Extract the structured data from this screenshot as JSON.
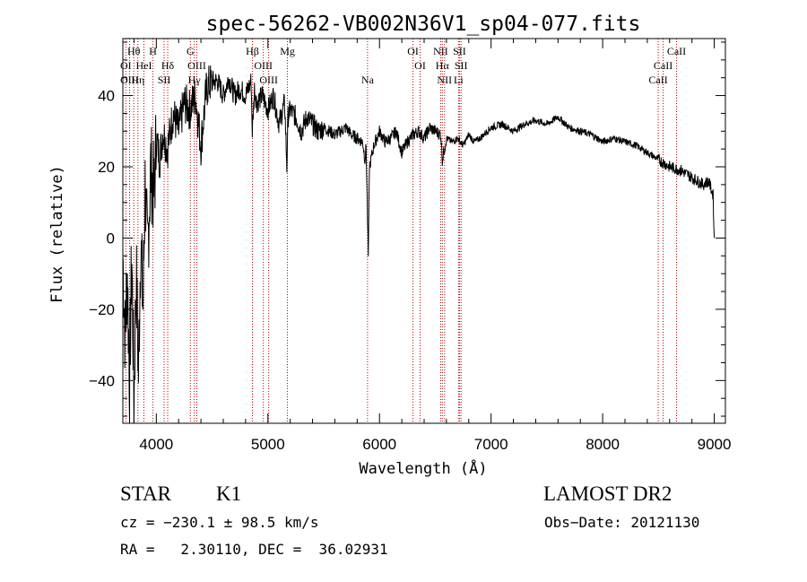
{
  "chart_data": {
    "type": "line",
    "title": "spec-56262-VB002N36V1_sp04-077.fits",
    "xlabel": "Wavelength (Å)",
    "ylabel": "Flux (relative)",
    "xlim": [
      3700,
      9100
    ],
    "ylim": [
      -52,
      56
    ],
    "xticks": [
      4000,
      5000,
      6000,
      7000,
      8000,
      9000
    ],
    "yticks": [
      -40,
      -20,
      0,
      20,
      40
    ],
    "x_minor_step": 200,
    "y_minor_step": 5,
    "grid": false,
    "series": [
      {
        "name": "flux",
        "x": [
          3700,
          3720,
          3740,
          3760,
          3780,
          3800,
          3820,
          3840,
          3860,
          3880,
          3900,
          3920,
          3950,
          3980,
          4000,
          4030,
          4060,
          4100,
          4150,
          4200,
          4250,
          4300,
          4350,
          4400,
          4450,
          4500,
          4550,
          4600,
          4650,
          4700,
          4750,
          4800,
          4850,
          4860,
          4880,
          4900,
          4950,
          5000,
          5050,
          5100,
          5150,
          5170,
          5180,
          5200,
          5250,
          5300,
          5350,
          5400,
          5450,
          5500,
          5550,
          5600,
          5650,
          5700,
          5750,
          5800,
          5850,
          5870,
          5880,
          5893,
          5900,
          5910,
          5950,
          6000,
          6050,
          6100,
          6150,
          6200,
          6250,
          6300,
          6350,
          6400,
          6450,
          6500,
          6550,
          6563,
          6600,
          6650,
          6700,
          6750,
          6800,
          6850,
          6900,
          7000,
          7100,
          7200,
          7300,
          7400,
          7500,
          7600,
          7700,
          7800,
          7900,
          8000,
          8100,
          8200,
          8300,
          8400,
          8500,
          8600,
          8700,
          8800,
          8900,
          8950,
          8990,
          9000
        ],
        "y": [
          -5,
          -28,
          -10,
          -40,
          -5,
          -45,
          -10,
          -38,
          0,
          -20,
          15,
          -5,
          20,
          12,
          28,
          22,
          30,
          25,
          35,
          30,
          38,
          36,
          40,
          26,
          42,
          44,
          44,
          40,
          45,
          40,
          42,
          40,
          44,
          30,
          42,
          38,
          40,
          36,
          40,
          32,
          38,
          20,
          34,
          36,
          34,
          30,
          34,
          32,
          30,
          31,
          30,
          29,
          30,
          31,
          29,
          28,
          27,
          22,
          26,
          5,
          -5,
          20,
          26,
          30,
          27,
          28,
          30,
          24,
          27,
          29,
          30,
          28,
          31,
          30,
          29,
          22,
          28,
          27,
          28,
          26,
          29,
          27,
          28,
          31,
          32,
          30,
          32,
          33,
          32,
          34,
          31,
          30,
          29,
          27,
          28,
          27,
          26,
          24,
          22,
          20,
          19,
          17,
          15,
          16,
          12,
          0
        ]
      }
    ],
    "lines": [
      {
        "label": "Hθ",
        "x": 3798,
        "row": 0
      },
      {
        "label": "H",
        "x": 3970,
        "row": 0
      },
      {
        "label": "G",
        "x": 4305,
        "row": 0
      },
      {
        "label": "Hβ",
        "x": 4861,
        "row": 0
      },
      {
        "label": "Mg",
        "x": 5175,
        "row": 0
      },
      {
        "label": "OI",
        "x": 6300,
        "row": 0
      },
      {
        "label": "NII",
        "x": 6548,
        "row": 0
      },
      {
        "label": "SII",
        "x": 6717,
        "row": 0
      },
      {
        "label": "CaII",
        "x": 8662,
        "row": 0
      },
      {
        "label": "OI",
        "x": 3727,
        "row": 1
      },
      {
        "label": "HeI",
        "x": 3889,
        "row": 1
      },
      {
        "label": "Hδ",
        "x": 4102,
        "row": 1
      },
      {
        "label": "OIII",
        "x": 4363,
        "row": 1
      },
      {
        "label": "OIII",
        "x": 4959,
        "row": 1
      },
      {
        "label": "OI",
        "x": 6364,
        "row": 1
      },
      {
        "label": "Hα",
        "x": 6563,
        "row": 1
      },
      {
        "label": "SII",
        "x": 6731,
        "row": 1
      },
      {
        "label": "CaII",
        "x": 8542,
        "row": 1
      },
      {
        "label": "OIII",
        "x": 3760,
        "row": 2
      },
      {
        "label": "Hη",
        "x": 3835,
        "row": 2
      },
      {
        "label": "SII",
        "x": 4070,
        "row": 2
      },
      {
        "label": "Hγ",
        "x": 4340,
        "row": 2
      },
      {
        "label": "OIII",
        "x": 5007,
        "row": 2
      },
      {
        "label": "Na",
        "x": 5893,
        "row": 2
      },
      {
        "label": "NII",
        "x": 6583,
        "row": 2
      },
      {
        "label": "Li",
        "x": 6708,
        "row": 2
      },
      {
        "label": "CaII",
        "x": 8498,
        "row": 2
      }
    ]
  },
  "info": {
    "object_type": "STAR",
    "subclass": "K1",
    "survey": "LAMOST DR2",
    "cz": "cz = −230.1 ± 98.5 km/s",
    "obs_date": "Obs−Date: 20121130",
    "coords": "RA =   2.30110, DEC =  36.02931"
  },
  "colors": {
    "line_marker": "#b30000",
    "spectrum": "#000000",
    "axes": "#000000"
  }
}
